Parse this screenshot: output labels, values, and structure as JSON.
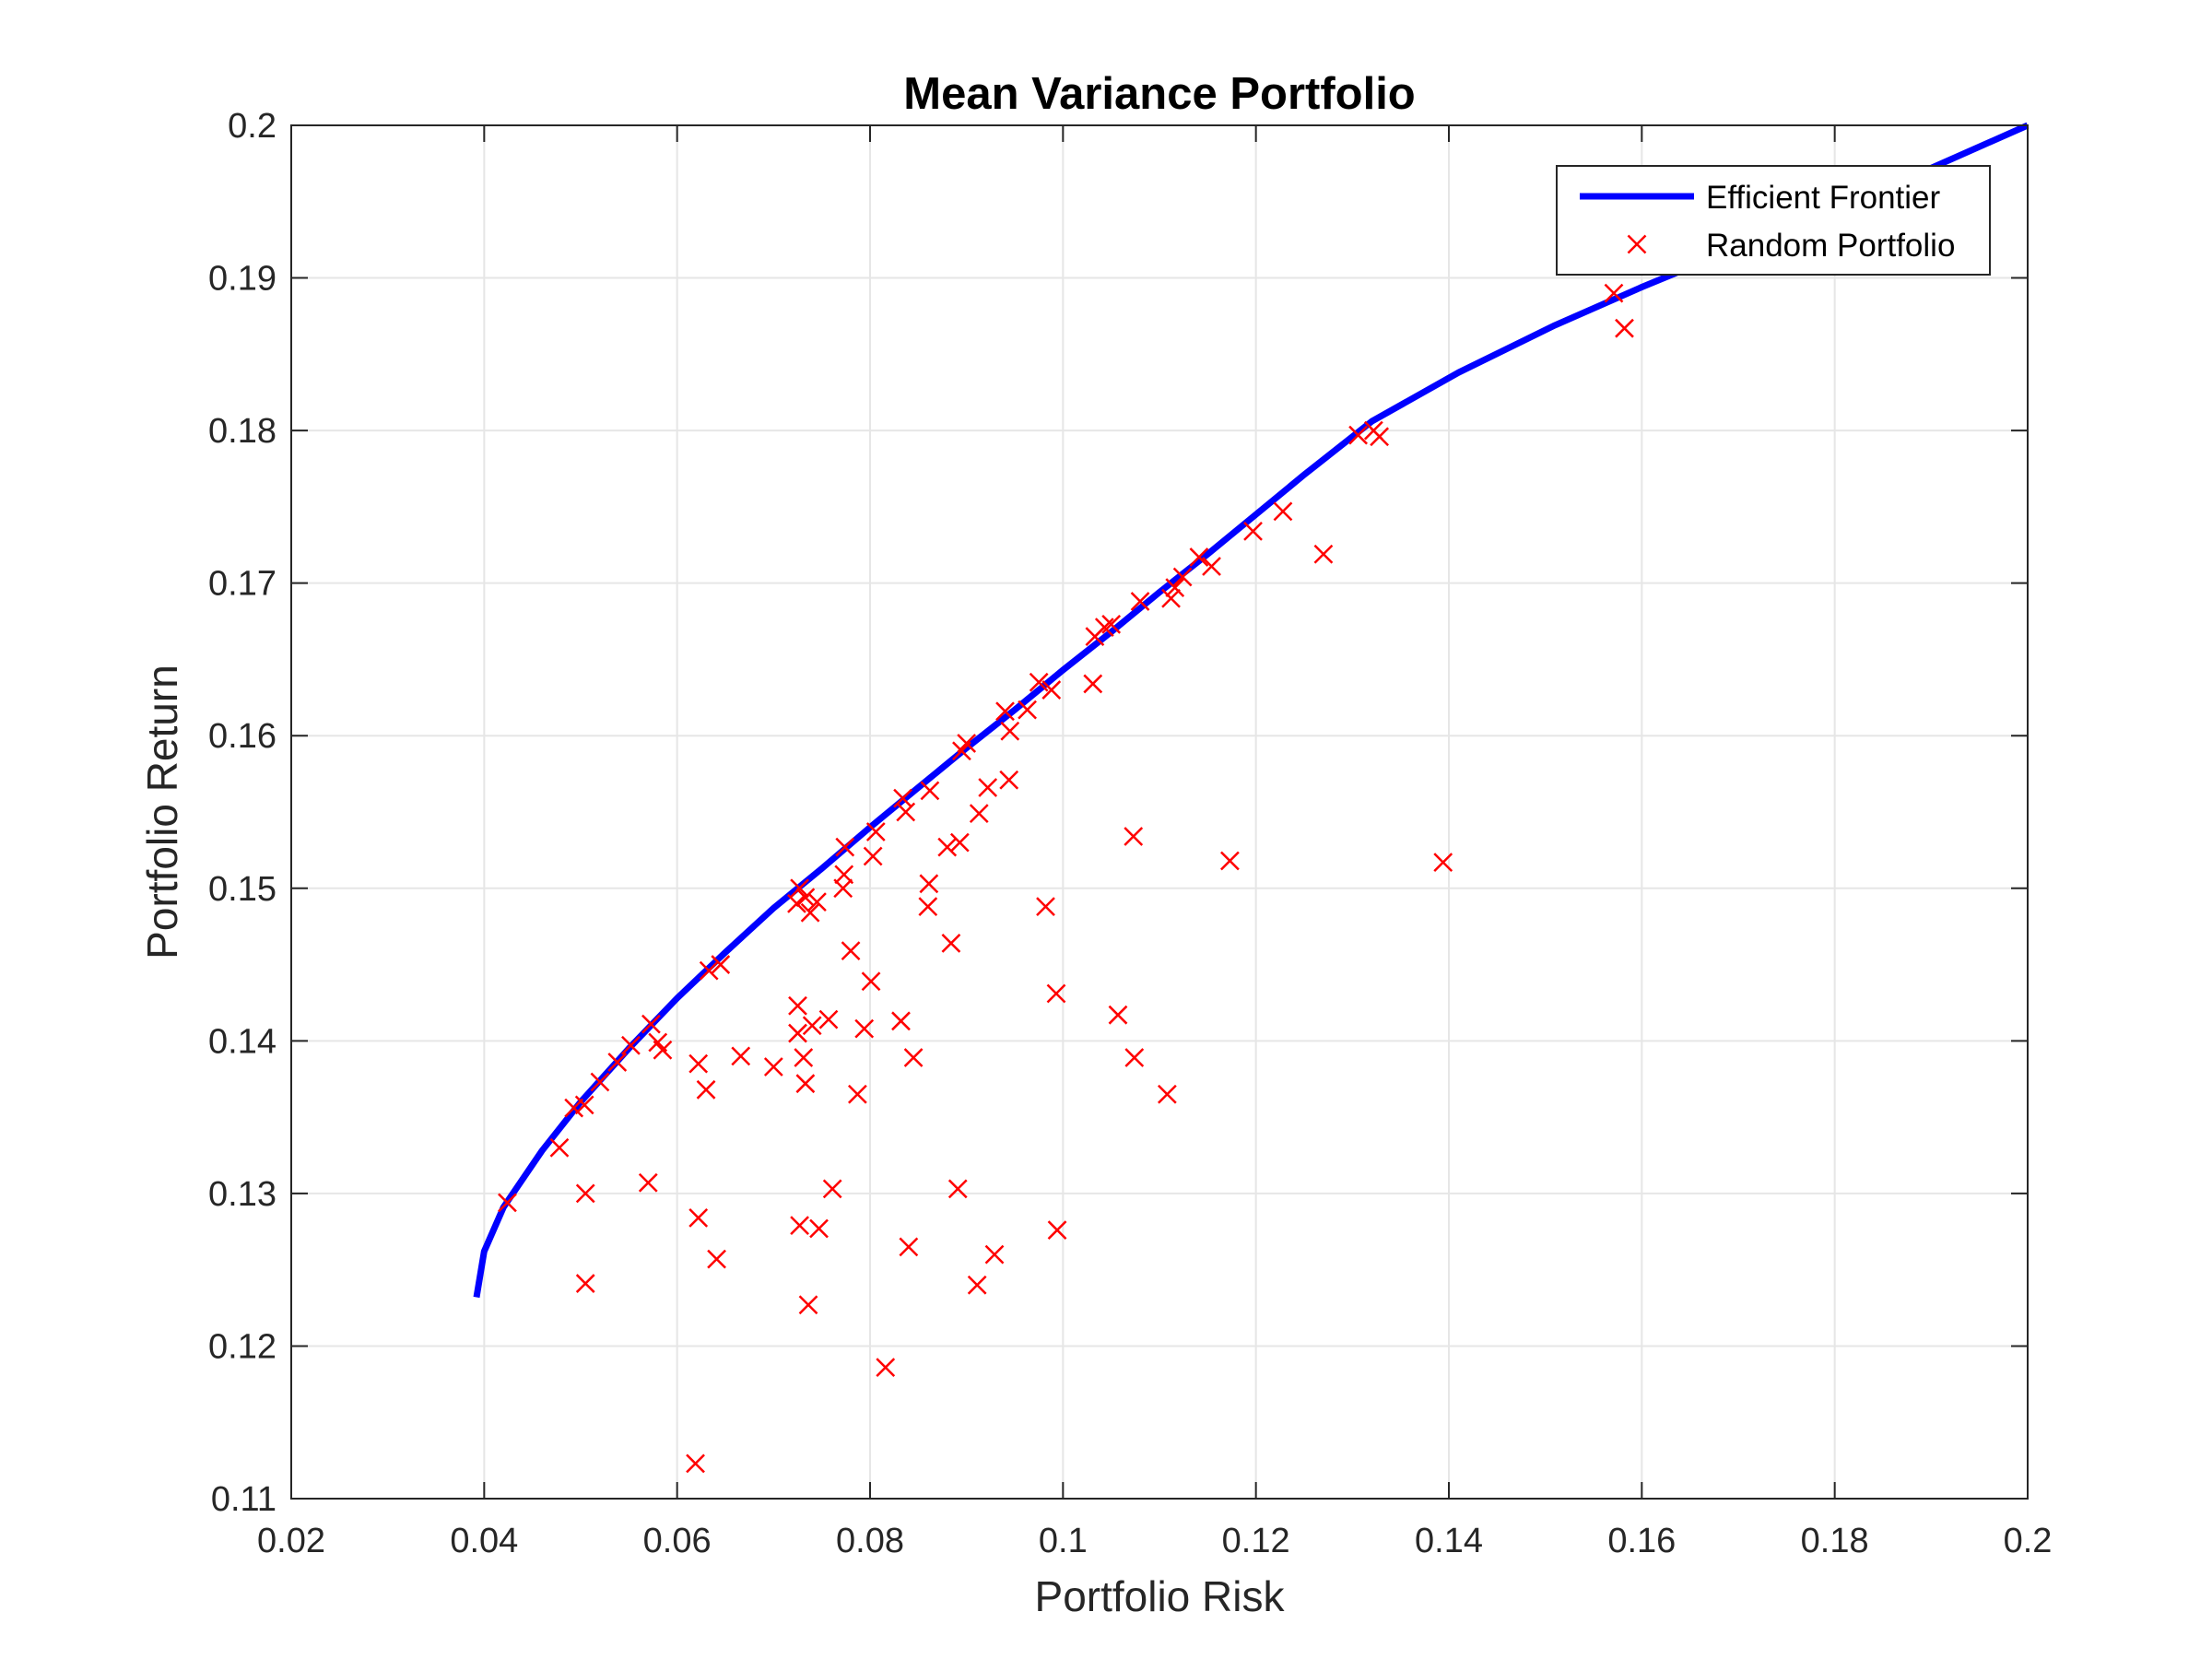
{
  "chart_data": {
    "type": "scatter",
    "title": "Mean Variance Portfolio",
    "xlabel": "Portfolio Risk",
    "ylabel": "Portfolio Return",
    "xlim": [
      0.02,
      0.2
    ],
    "ylim": [
      0.11,
      0.2
    ],
    "xticks": [
      "0.02",
      "0.04",
      "0.06",
      "0.08",
      "0.1",
      "0.12",
      "0.14",
      "0.16",
      "0.18",
      "0.2"
    ],
    "yticks": [
      "0.11",
      "0.12",
      "0.13",
      "0.14",
      "0.15",
      "0.16",
      "0.17",
      "0.18",
      "0.19",
      "0.2"
    ],
    "grid": true,
    "legend_position": "top-right",
    "colors": {
      "frontier": "#0000ff",
      "random": "#ff0000",
      "grid": "#e6e6e6",
      "axis": "#262626"
    },
    "series": [
      {
        "name": "Efficient Frontier",
        "type": "line",
        "points": [
          [
            0.0392,
            0.1232
          ],
          [
            0.04,
            0.1262
          ],
          [
            0.042,
            0.1291
          ],
          [
            0.046,
            0.1328
          ],
          [
            0.05,
            0.136
          ],
          [
            0.055,
            0.1395
          ],
          [
            0.06,
            0.1428
          ],
          [
            0.065,
            0.1458
          ],
          [
            0.07,
            0.1487
          ],
          [
            0.075,
            0.1513
          ],
          [
            0.08,
            0.154
          ],
          [
            0.085,
            0.1566
          ],
          [
            0.09,
            0.1592
          ],
          [
            0.095,
            0.1617
          ],
          [
            0.1,
            0.1643
          ],
          [
            0.105,
            0.1668
          ],
          [
            0.11,
            0.1694
          ],
          [
            0.115,
            0.1719
          ],
          [
            0.12,
            0.1745
          ],
          [
            0.125,
            0.1771
          ],
          [
            0.132,
            0.1806
          ],
          [
            0.141,
            0.1838
          ],
          [
            0.151,
            0.1869
          ],
          [
            0.16,
            0.1894
          ],
          [
            0.17,
            0.192
          ],
          [
            0.18,
            0.1945
          ],
          [
            0.19,
            0.1972
          ],
          [
            0.2,
            0.2
          ]
        ]
      },
      {
        "name": "Random Portfolio",
        "type": "scatter",
        "points": [
          [
            0.0424,
            0.1294
          ],
          [
            0.0478,
            0.133
          ],
          [
            0.0493,
            0.1356
          ],
          [
            0.0504,
            0.1358
          ],
          [
            0.052,
            0.1373
          ],
          [
            0.0538,
            0.1386
          ],
          [
            0.0552,
            0.1397
          ],
          [
            0.0573,
            0.1411
          ],
          [
            0.058,
            0.1399
          ],
          [
            0.0585,
            0.1394
          ],
          [
            0.0505,
            0.13
          ],
          [
            0.0505,
            0.1241
          ],
          [
            0.057,
            0.1307
          ],
          [
            0.0622,
            0.1385
          ],
          [
            0.063,
            0.1368
          ],
          [
            0.0622,
            0.1284
          ],
          [
            0.0641,
            0.1257
          ],
          [
            0.0619,
            0.1123
          ],
          [
            0.0633,
            0.1446
          ],
          [
            0.0645,
            0.145
          ],
          [
            0.0666,
            0.139
          ],
          [
            0.07,
            0.1383
          ],
          [
            0.0725,
            0.1423
          ],
          [
            0.0725,
            0.1405
          ],
          [
            0.0731,
            0.1389
          ],
          [
            0.0733,
            0.1372
          ],
          [
            0.074,
            0.141
          ],
          [
            0.0757,
            0.1414
          ],
          [
            0.0727,
            0.1279
          ],
          [
            0.0747,
            0.1277
          ],
          [
            0.0761,
            0.1303
          ],
          [
            0.0736,
            0.1227
          ],
          [
            0.0816,
            0.1186
          ],
          [
            0.0724,
            0.149
          ],
          [
            0.0727,
            0.15
          ],
          [
            0.0733,
            0.1494
          ],
          [
            0.0738,
            0.1484
          ],
          [
            0.0745,
            0.1491
          ],
          [
            0.0772,
            0.15
          ],
          [
            0.0773,
            0.1509
          ],
          [
            0.0774,
            0.1527
          ],
          [
            0.078,
            0.1459
          ],
          [
            0.0787,
            0.1365
          ],
          [
            0.0794,
            0.1408
          ],
          [
            0.0801,
            0.1439
          ],
          [
            0.0803,
            0.1521
          ],
          [
            0.0806,
            0.1537
          ],
          [
            0.0832,
            0.1413
          ],
          [
            0.0834,
            0.1559
          ],
          [
            0.0837,
            0.155
          ],
          [
            0.084,
            0.1265
          ],
          [
            0.0845,
            0.1389
          ],
          [
            0.086,
            0.1488
          ],
          [
            0.0861,
            0.1503
          ],
          [
            0.0862,
            0.1564
          ],
          [
            0.088,
            0.1527
          ],
          [
            0.0884,
            0.1464
          ],
          [
            0.0891,
            0.1303
          ],
          [
            0.0893,
            0.153
          ],
          [
            0.0895,
            0.159
          ],
          [
            0.09,
            0.1595
          ],
          [
            0.0911,
            0.124
          ],
          [
            0.0913,
            0.1549
          ],
          [
            0.0922,
            0.1566
          ],
          [
            0.0929,
            0.126
          ],
          [
            0.094,
            0.1616
          ],
          [
            0.0944,
            0.1571
          ],
          [
            0.0945,
            0.1603
          ],
          [
            0.0963,
            0.1617
          ],
          [
            0.0975,
            0.1635
          ],
          [
            0.0982,
            0.1488
          ],
          [
            0.0988,
            0.163
          ],
          [
            0.0993,
            0.1431
          ],
          [
            0.0994,
            0.1276
          ],
          [
            0.1031,
            0.1634
          ],
          [
            0.1033,
            0.1665
          ],
          [
            0.1043,
            0.1671
          ],
          [
            0.105,
            0.1673
          ],
          [
            0.1057,
            0.1417
          ],
          [
            0.1073,
            0.1534
          ],
          [
            0.1074,
            0.1389
          ],
          [
            0.108,
            0.1688
          ],
          [
            0.1108,
            0.1365
          ],
          [
            0.1112,
            0.169
          ],
          [
            0.1116,
            0.1697
          ],
          [
            0.1124,
            0.1704
          ],
          [
            0.1141,
            0.1717
          ],
          [
            0.1154,
            0.1711
          ],
          [
            0.1173,
            0.1518
          ],
          [
            0.1197,
            0.1734
          ],
          [
            0.1228,
            0.1747
          ],
          [
            0.127,
            0.1719
          ],
          [
            0.1306,
            0.1797
          ],
          [
            0.1322,
            0.18
          ],
          [
            0.1328,
            0.1796
          ],
          [
            0.1394,
            0.1517
          ],
          [
            0.1571,
            0.189
          ],
          [
            0.1582,
            0.1867
          ]
        ]
      }
    ]
  }
}
